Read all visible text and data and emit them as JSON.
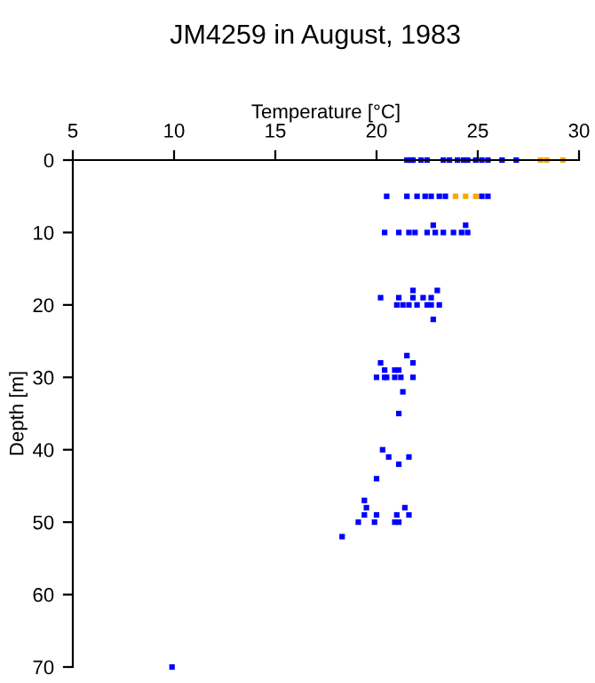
{
  "chart_data": {
    "type": "scatter",
    "title": "JM4259 in August, 1983",
    "xlabel": "Temperature [°C]",
    "ylabel": "Depth [m]",
    "xlim": [
      5,
      30
    ],
    "xticks": [
      5,
      10,
      15,
      20,
      25,
      30
    ],
    "ylim": [
      70,
      0
    ],
    "yticks": [
      0,
      10,
      20,
      30,
      40,
      50,
      60,
      70
    ],
    "grid": false,
    "marker": "square",
    "series": [
      {
        "color": "#0000ff",
        "x": [
          21.5,
          21.7,
          21.8,
          22.2,
          22.5,
          23.3,
          23.6,
          24.0,
          24.3,
          24.5,
          24.9,
          25.2,
          25.5,
          26.2,
          26.9,
          20.5,
          21.5,
          22.0,
          22.4,
          22.7,
          23.1,
          23.4,
          25.2,
          25.5,
          20.4,
          21.1,
          21.6,
          21.9,
          22.5,
          22.9,
          23.3,
          23.8,
          24.2,
          24.5,
          22.8,
          24.4,
          21.8,
          23.0,
          20.2,
          21.1,
          21.8,
          22.3,
          22.7,
          21.0,
          21.3,
          21.6,
          22.0,
          22.5,
          22.7,
          23.1,
          22.8,
          21.5,
          20.2,
          21.8,
          20.4,
          20.9,
          21.1,
          20.0,
          20.4,
          20.5,
          20.9,
          21.2,
          21.8,
          21.3,
          21.1,
          20.3,
          20.6,
          21.6,
          21.1,
          20.0,
          19.4,
          19.5,
          21.4,
          19.4,
          20.0,
          21.0,
          21.6,
          19.1,
          19.9,
          20.9,
          21.1,
          18.3,
          9.9
        ],
        "values": [
          0,
          0,
          0,
          0,
          0,
          0,
          0,
          0,
          0,
          0,
          0,
          0,
          0,
          0,
          0,
          5,
          5,
          5,
          5,
          5,
          5,
          5,
          5,
          5,
          10,
          10,
          10,
          10,
          10,
          10,
          10,
          10,
          10,
          10,
          9,
          9,
          18,
          18,
          19,
          19,
          19,
          19,
          19,
          20,
          20,
          20,
          20,
          20,
          20,
          20,
          22,
          27,
          28,
          28,
          29,
          29,
          29,
          30,
          30,
          30,
          30,
          30,
          30,
          32,
          35,
          40,
          41,
          41,
          42,
          44,
          47,
          48,
          48,
          49,
          49,
          49,
          49,
          50,
          50,
          50,
          50,
          52,
          70
        ]
      },
      {
        "color": "#ffa500",
        "x": [
          28.1,
          28.4,
          29.2,
          23.9,
          24.4,
          24.9
        ],
        "values": [
          0,
          0,
          0,
          5,
          5,
          5
        ]
      }
    ]
  }
}
